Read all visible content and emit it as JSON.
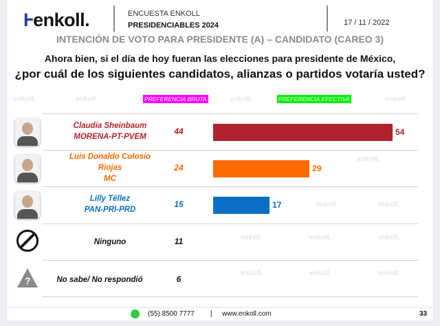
{
  "header": {
    "logo": "enkoll.",
    "line1": "ENCUESTA ENKOLL",
    "line2": "PRESIDENCIABLES 2024",
    "date": "17 / 11 / 2022"
  },
  "watermark": "enkoll.",
  "chart_data": {
    "type": "bar",
    "title": "INTENCIÓN DE VOTO PARA PRESIDENTE (A) – CANDIDATO (CAREO 3)",
    "question_line1": "Ahora bien, si el día de hoy fueran las elecciones para presidente de México,",
    "question_line2": "¿por cuál de los siguientes candidatos, alianzas o partidos votaría usted?",
    "column_bruta": "PREFERENCIA BRUTA",
    "column_efectiva": "PREFERENCIA EFECTIVA",
    "colors": {
      "bruta_tag": "#ff00ff",
      "efectiva_tag": "#00ee00"
    },
    "rows": [
      {
        "name": "Claudia Sheinbaum",
        "party": "MORENA-PT-PVEM",
        "bruta": 44,
        "efectiva": 54,
        "color": "#b0232e"
      },
      {
        "name": "Luis Donaldo Colosio Riojas",
        "name_line1": "Luis Donaldo Colosio",
        "name_line2": "Riojas",
        "party": "MC",
        "bruta": 24,
        "efectiva": 29,
        "color": "#ff6a00"
      },
      {
        "name": "Lilly Téllez",
        "party": "PAN-PRI-PRD",
        "bruta": 15,
        "efectiva": 17,
        "color": "#0a6fc2"
      },
      {
        "name": "Ninguno",
        "bruta": 11,
        "icon": "prohibited-icon",
        "color": "#111111"
      },
      {
        "name": "No sabe/ No respondió",
        "bruta": 6,
        "icon": "question-warning-icon",
        "color": "#111111"
      }
    ]
  },
  "footer": {
    "phone": "(55) 8500 7777",
    "separator": "|",
    "website": "www.enkoll.com",
    "page": "33"
  }
}
